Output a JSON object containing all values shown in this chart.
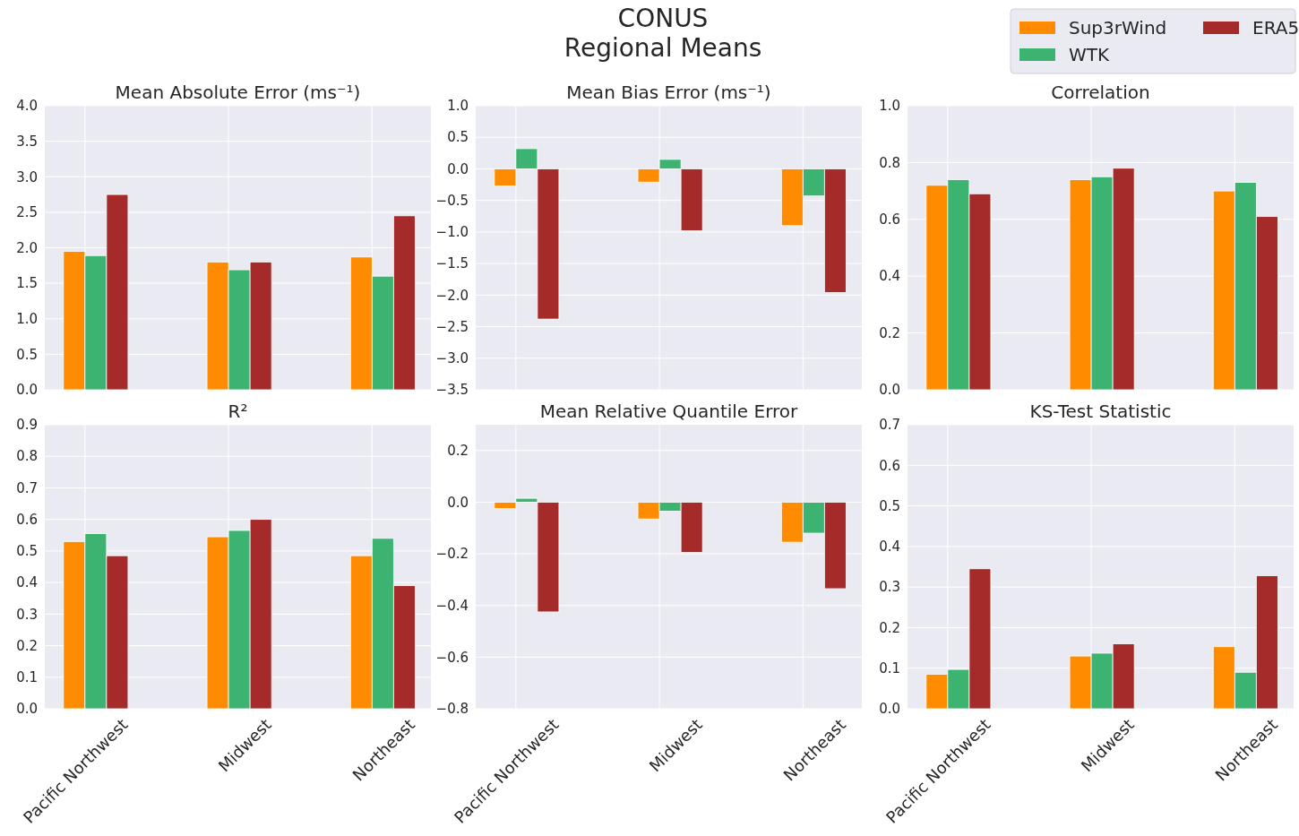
{
  "chart_data": [
    {
      "type": "bar",
      "title": "Mean Absolute Error (ms⁻¹)",
      "annotations": [
        "CONUS\nRegional Means"
      ],
      "categories": [
        null,
        null,
        null
      ],
      "tick_labels": "y",
      "grid": true,
      "ylim": [
        0,
        4
      ],
      "yticks": [
        {
          "value": 0,
          "label": "0.0"
        },
        {
          "value": 0.5,
          "label": "0.5"
        },
        {
          "value": 1,
          "label": "1.0"
        },
        {
          "value": 1.5,
          "label": "1.5"
        },
        {
          "value": 2,
          "label": "2.0"
        },
        {
          "value": 2.5,
          "label": "2.5"
        },
        {
          "value": 3,
          "label": "3.0"
        },
        {
          "value": 3.5,
          "label": "3.5"
        },
        {
          "value": 4,
          "label": "4.0"
        }
      ],
      "series": [
        {
          "color": "#ff8c00",
          "values": [
            1.95,
            1.8,
            1.87
          ]
        },
        {
          "color": "#3cb371",
          "values": [
            1.89,
            1.69,
            1.6
          ]
        },
        {
          "color": "#a52a2a",
          "values": [
            2.75,
            1.8,
            2.45
          ]
        }
      ]
    },
    {
      "type": "bar",
      "title": "Mean Bias Error (ms⁻¹)",
      "categories": [
        null,
        null,
        null
      ],
      "tick_labels": "y",
      "grid": true,
      "ylim": [
        -3.5,
        1
      ],
      "yticks": [
        {
          "value": -3.5,
          "label": "−3.5"
        },
        {
          "value": -3,
          "label": "−3.0"
        },
        {
          "value": -2.5,
          "label": "−2.5"
        },
        {
          "value": -2,
          "label": "−2.0"
        },
        {
          "value": -1.5,
          "label": "−1.5"
        },
        {
          "value": -1,
          "label": "−1.0"
        },
        {
          "value": -0.5,
          "label": "−0.5"
        },
        {
          "value": 0,
          "label": "0.0"
        },
        {
          "value": 0.5,
          "label": "0.5"
        },
        {
          "value": 1,
          "label": "1.0"
        }
      ],
      "series": [
        {
          "color": "#ff8c00",
          "values": [
            -0.27,
            -0.21,
            -0.9
          ]
        },
        {
          "color": "#3cb371",
          "values": [
            0.32,
            0.15,
            -0.43
          ]
        },
        {
          "color": "#a52a2a",
          "values": [
            -2.38,
            -0.98,
            -1.96
          ]
        }
      ]
    },
    {
      "type": "bar",
      "title": "Correlation",
      "categories": [
        null,
        null,
        null
      ],
      "tick_labels": "y",
      "grid": true,
      "legend": "top right",
      "ylim": [
        0,
        1
      ],
      "yticks": [
        {
          "value": 0,
          "label": "0.0"
        },
        {
          "value": 0.2,
          "label": "0.2"
        },
        {
          "value": 0.4,
          "label": "0.4"
        },
        {
          "value": 0.6,
          "label": "0.6"
        },
        {
          "value": 0.8,
          "label": "0.8"
        },
        {
          "value": 1,
          "label": "1.0"
        }
      ],
      "series": [
        {
          "name": "Sup3rWind",
          "color": "#ff8c00",
          "values": [
            0.72,
            0.74,
            0.7
          ]
        },
        {
          "name": "WTK",
          "color": "#3cb371",
          "values": [
            0.74,
            0.75,
            0.73
          ]
        },
        {
          "name": "ERA5",
          "color": "#a52a2a",
          "values": [
            0.69,
            0.78,
            0.61
          ]
        }
      ]
    },
    {
      "type": "bar",
      "title": "R²",
      "categories": [
        "Pacific Northwest",
        "Midwest",
        "Northeast"
      ],
      "grid": true,
      "ylim": [
        0,
        0.9
      ],
      "yticks": [
        {
          "value": 0,
          "label": "0.0"
        },
        {
          "value": 0.1,
          "label": "0.1"
        },
        {
          "value": 0.2,
          "label": "0.2"
        },
        {
          "value": 0.3,
          "label": "0.3"
        },
        {
          "value": 0.4,
          "label": "0.4"
        },
        {
          "value": 0.5,
          "label": "0.5"
        },
        {
          "value": 0.6,
          "label": "0.6"
        },
        {
          "value": 0.7,
          "label": "0.7"
        },
        {
          "value": 0.8,
          "label": "0.8"
        },
        {
          "value": 0.9,
          "label": "0.9"
        }
      ],
      "series": [
        {
          "color": "#ff8c00",
          "values": [
            0.53,
            0.545,
            0.485
          ]
        },
        {
          "color": "#3cb371",
          "values": [
            0.555,
            0.565,
            0.54
          ]
        },
        {
          "color": "#a52a2a",
          "values": [
            0.485,
            0.6,
            0.39
          ]
        }
      ]
    },
    {
      "type": "bar",
      "title": "Mean Relative Quantile Error",
      "categories": [
        "Pacific Northwest",
        "Midwest",
        "Northeast"
      ],
      "grid": true,
      "ylim": [
        -0.8,
        0.3
      ],
      "yticks": [
        {
          "value": -0.8,
          "label": "−0.8"
        },
        {
          "value": -0.6,
          "label": "−0.6"
        },
        {
          "value": -0.4,
          "label": "−0.4"
        },
        {
          "value": -0.2,
          "label": "−0.2"
        },
        {
          "value": 0,
          "label": "0.0"
        },
        {
          "value": 0.2,
          "label": "0.2"
        }
      ],
      "series": [
        {
          "color": "#ff8c00",
          "values": [
            -0.025,
            -0.065,
            -0.155
          ]
        },
        {
          "color": "#3cb371",
          "values": [
            0.015,
            -0.035,
            -0.12
          ]
        },
        {
          "color": "#a52a2a",
          "values": [
            -0.425,
            -0.195,
            -0.335
          ]
        }
      ]
    },
    {
      "type": "bar",
      "title": "KS-Test Statistic",
      "categories": [
        "Pacific Northwest",
        "Midwest",
        "Northeast"
      ],
      "grid": true,
      "ylim": [
        0,
        0.7
      ],
      "yticks": [
        {
          "value": 0,
          "label": "0.0"
        },
        {
          "value": 0.1,
          "label": "0.1"
        },
        {
          "value": 0.2,
          "label": "0.2"
        },
        {
          "value": 0.3,
          "label": "0.3"
        },
        {
          "value": 0.4,
          "label": "0.4"
        },
        {
          "value": 0.5,
          "label": "0.5"
        },
        {
          "value": 0.6,
          "label": "0.6"
        },
        {
          "value": 0.7,
          "label": "0.7"
        }
      ],
      "series": [
        {
          "color": "#ff8c00",
          "values": [
            0.085,
            0.13,
            0.153
          ]
        },
        {
          "color": "#3cb371",
          "values": [
            0.097,
            0.137,
            0.09
          ]
        },
        {
          "color": "#a52a2a",
          "values": [
            0.345,
            0.16,
            0.328
          ]
        }
      ]
    }
  ]
}
